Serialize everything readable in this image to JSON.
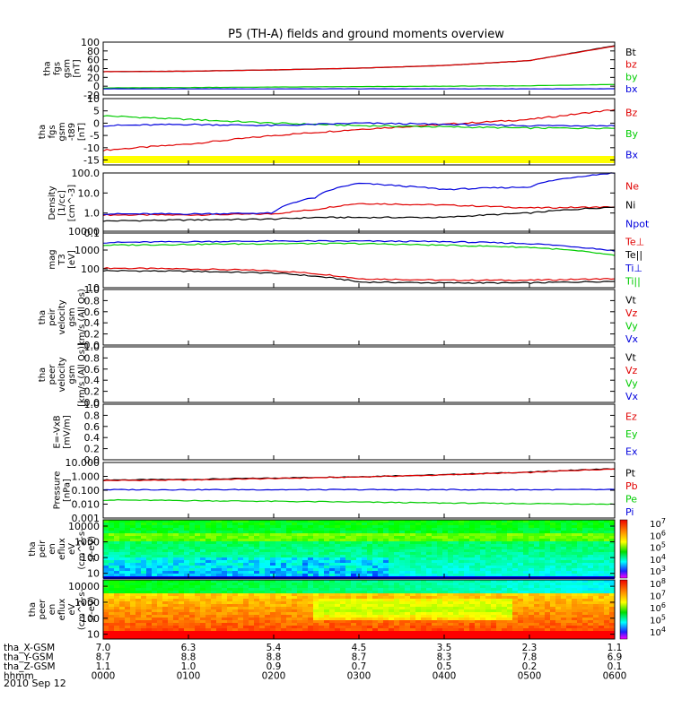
{
  "title": "P5 (TH-A) fields and ground moments overview",
  "date_label": "2010 Sep 12",
  "orbit_rows": [
    {
      "label": "tha_X-GSM",
      "values": [
        "7.0",
        "6.3",
        "5.4",
        "4.5",
        "3.5",
        "2.3",
        "1.1"
      ]
    },
    {
      "label": "tha_Y-GSM",
      "values": [
        "8.7",
        "8.8",
        "8.8",
        "8.7",
        "8.3",
        "7.8",
        "6.9"
      ]
    },
    {
      "label": "tha_Z-GSM",
      "values": [
        "1.1",
        "1.0",
        "0.9",
        "0.7",
        "0.5",
        "0.2",
        "0.1"
      ]
    },
    {
      "label": "hhmm",
      "values": [
        "0000",
        "0100",
        "0200",
        "0300",
        "0400",
        "0500",
        "0600"
      ]
    }
  ],
  "colors": {
    "black": "#000000",
    "red": "#e00000",
    "green": "#00cc00",
    "blue": "#0000dd",
    "yellow": "#ffff00"
  },
  "chart_data": [
    {
      "type": "line",
      "panel": "fgs-gsm",
      "ylabel": [
        "tha",
        "fgs",
        "gsm",
        "[nT]"
      ],
      "yticks": [
        "100",
        "80",
        "60",
        "40",
        "20",
        "0",
        "-20"
      ],
      "ylim": [
        -20,
        100
      ],
      "x": [
        "0000",
        "0100",
        "0200",
        "0300",
        "0400",
        "0500",
        "0600"
      ],
      "series": [
        {
          "name": "Bt",
          "color": "#000000",
          "values": [
            33,
            34,
            37,
            41,
            47,
            58,
            92
          ]
        },
        {
          "name": "bz",
          "color": "#e00000",
          "values": [
            33,
            34,
            37,
            41,
            47,
            58,
            91
          ]
        },
        {
          "name": "by",
          "color": "#00cc00",
          "values": [
            -4,
            -3,
            -2,
            -1,
            0,
            1,
            4
          ]
        },
        {
          "name": "bx",
          "color": "#0000dd",
          "values": [
            -6,
            -6,
            -6,
            -6,
            -6,
            -6,
            -6
          ]
        }
      ]
    },
    {
      "type": "line",
      "panel": "fgs-dsl",
      "ylabel": [
        "tha",
        "fgs",
        "gsm",
        "-t89",
        "[nT]"
      ],
      "yticks": [
        "10",
        "5",
        "0",
        "-5",
        "-10",
        "-15"
      ],
      "ylim": [
        -17,
        10
      ],
      "x": [
        "0000",
        "0100",
        "0200",
        "0300",
        "0400",
        "0500",
        "0600"
      ],
      "series": [
        {
          "name": "Bz",
          "color": "#e00000",
          "values": [
            -11,
            -8.5,
            -5,
            -2.5,
            -0.5,
            1.5,
            5.5
          ]
        },
        {
          "name": "By",
          "color": "#00cc00",
          "values": [
            3,
            1.5,
            0,
            -1,
            -1.5,
            -2,
            -2
          ]
        },
        {
          "name": "Bx",
          "color": "#0000dd",
          "values": [
            -1,
            -0.5,
            -1,
            0,
            -0.5,
            -1,
            -1
          ]
        }
      ],
      "flag_bar_color": "#ffff00"
    },
    {
      "type": "line",
      "panel": "density",
      "yscale": "log",
      "ylabel": [
        "Density",
        "[1/cc]",
        "[cm^-3]"
      ],
      "yticks": [
        "100.0",
        "10.0",
        "1.0",
        "0.1"
      ],
      "ylim": [
        0.1,
        100
      ],
      "x": [
        "0000",
        "0100",
        "0200",
        "0230",
        "0300",
        "0400",
        "0500",
        "0600"
      ],
      "series": [
        {
          "name": "Ne",
          "color": "#e00000",
          "values": [
            0.8,
            0.8,
            0.9,
            1.5,
            3.0,
            2.5,
            1.8,
            2.0
          ]
        },
        {
          "name": "Ni",
          "color": "#000000",
          "values": [
            0.4,
            0.45,
            0.5,
            0.6,
            0.6,
            0.6,
            1.0,
            2.0
          ]
        },
        {
          "name": "Npot",
          "color": "#0000dd",
          "values": [
            0.9,
            0.9,
            1.0,
            6.0,
            30,
            15,
            20,
            100
          ]
        }
      ]
    },
    {
      "type": "line",
      "panel": "temperature",
      "yscale": "log",
      "ylabel": [
        "mag",
        "T3",
        "[eV]"
      ],
      "yticks": [
        "10000",
        "1000",
        "100",
        "10"
      ],
      "ylim": [
        10,
        10000
      ],
      "x": [
        "0000",
        "0100",
        "0200",
        "0300",
        "0400",
        "0500",
        "0600"
      ],
      "series": [
        {
          "name": "Te⊥",
          "color": "#e00000",
          "values": [
            110,
            100,
            80,
            30,
            25,
            25,
            30
          ]
        },
        {
          "name": "Te||",
          "color": "#000000",
          "values": [
            80,
            75,
            60,
            20,
            18,
            18,
            22
          ]
        },
        {
          "name": "Ti⊥",
          "color": "#0000dd",
          "values": [
            2500,
            2800,
            3000,
            3000,
            2800,
            2200,
            900
          ]
        },
        {
          "name": "Ti||",
          "color": "#00cc00",
          "values": [
            1800,
            2000,
            2200,
            2200,
            1800,
            1400,
            500
          ]
        }
      ]
    },
    {
      "type": "line",
      "panel": "peir-velocity",
      "ylabel": [
        "tha",
        "peir",
        "velocity",
        "gsm",
        "km/s (All Qs)"
      ],
      "yticks": [
        "1.0",
        "0.8",
        "0.6",
        "0.4",
        "0.2",
        "0.0"
      ],
      "ylim": [
        0,
        1
      ],
      "series": [
        {
          "name": "Vt",
          "color": "#000000"
        },
        {
          "name": "Vz",
          "color": "#e00000"
        },
        {
          "name": "Vy",
          "color": "#00cc00"
        },
        {
          "name": "Vx",
          "color": "#0000dd"
        }
      ]
    },
    {
      "type": "line",
      "panel": "peer-velocity",
      "ylabel": [
        "tha",
        "peer",
        "velocity",
        "gsm",
        "[km/s (All Qs)]"
      ],
      "yticks": [
        "1.0",
        "0.8",
        "0.6",
        "0.4",
        "0.2",
        "0.0"
      ],
      "ylim": [
        0,
        1
      ],
      "series": [
        {
          "name": "Vt",
          "color": "#000000"
        },
        {
          "name": "Vz",
          "color": "#e00000"
        },
        {
          "name": "Vy",
          "color": "#00cc00"
        },
        {
          "name": "Vx",
          "color": "#0000dd"
        }
      ]
    },
    {
      "type": "line",
      "panel": "efield",
      "ylabel": [
        "E=-VxB",
        "[mV/m]"
      ],
      "yticks": [
        "1.0",
        "0.8",
        "0.6",
        "0.4",
        "0.2",
        "0.0"
      ],
      "ylim": [
        0,
        1
      ],
      "series": [
        {
          "name": "Ez",
          "color": "#e00000"
        },
        {
          "name": "Ey",
          "color": "#00cc00"
        },
        {
          "name": "Ex",
          "color": "#0000dd"
        }
      ]
    },
    {
      "type": "line",
      "panel": "pressure",
      "yscale": "log",
      "ylabel": [
        "Pressure",
        "[nPa]"
      ],
      "yticks": [
        "10.000",
        "1.000",
        "0.100",
        "0.010",
        "0.001"
      ],
      "ylim": [
        0.001,
        10
      ],
      "x": [
        "0000",
        "0100",
        "0200",
        "0300",
        "0400",
        "0500",
        "0600"
      ],
      "series": [
        {
          "name": "Pt",
          "color": "#000000",
          "values": [
            0.55,
            0.6,
            0.75,
            0.95,
            1.3,
            2.0,
            3.5
          ]
        },
        {
          "name": "Pb",
          "color": "#e00000",
          "values": [
            0.5,
            0.55,
            0.7,
            0.9,
            1.25,
            1.9,
            3.4
          ]
        },
        {
          "name": "Pe",
          "color": "#00cc00",
          "values": [
            0.02,
            0.018,
            0.016,
            0.014,
            0.012,
            0.011,
            0.01
          ]
        },
        {
          "name": "Pi",
          "color": "#0000dd",
          "values": [
            0.11,
            0.11,
            0.11,
            0.11,
            0.11,
            0.11,
            0.11
          ]
        }
      ]
    },
    {
      "type": "heatmap",
      "panel": "peir-eflux",
      "yscale": "log",
      "ylabel": [
        "tha",
        "peir",
        "en",
        "eflux",
        "eV",
        "(cm^2-s-",
        "sr-eV)"
      ],
      "yticks": [
        "10000",
        "1000",
        "100",
        "10"
      ],
      "ylim": [
        5,
        25000
      ],
      "colorbar_ticks": [
        "10^7",
        "10^6",
        "10^5",
        "10^4",
        "10^3"
      ]
    },
    {
      "type": "heatmap",
      "panel": "peer-eflux",
      "yscale": "log",
      "ylabel": [
        "tha",
        "peer",
        "en",
        "eflux",
        "eV",
        "(cm^2-s-",
        "sr-eV)"
      ],
      "yticks": [
        "10000",
        "1000",
        "100",
        "10"
      ],
      "ylim": [
        5,
        25000
      ],
      "colorbar_ticks": [
        "10^8",
        "10^7",
        "10^6",
        "10^5",
        "10^4"
      ]
    }
  ]
}
